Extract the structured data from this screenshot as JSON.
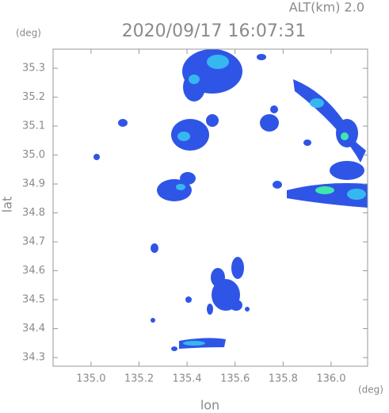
{
  "chart_data": {
    "type": "radar-map",
    "title": "2020/09/17 16:07:31",
    "altitude_label": "ALT(km) 2.0",
    "y_unit": "(deg)",
    "x_unit": "(deg)",
    "x_label": "lon",
    "y_label": "lat",
    "xlim": [
      134.842,
      136.152
    ],
    "ylim": [
      34.27,
      35.366
    ],
    "xticks": [
      {
        "value": 135,
        "label": "135.0"
      },
      135.2,
      135.4,
      135.6,
      135.8,
      {
        "value": 136,
        "label": "136.0"
      }
    ],
    "yticks": [
      34.3,
      34.4,
      34.5,
      34.6,
      34.7,
      34.8,
      34.9,
      {
        "value": 35,
        "label": "35.0"
      },
      35.1,
      35.2,
      35.3
    ]
  }
}
